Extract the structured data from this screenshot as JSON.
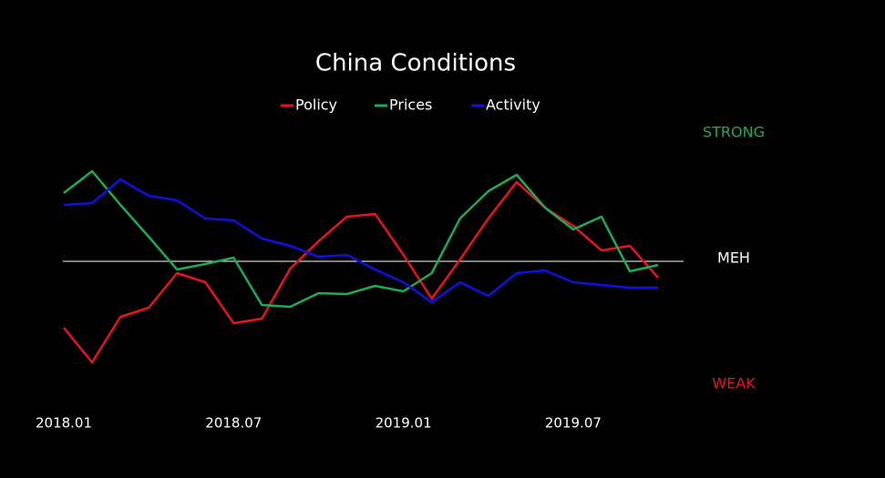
{
  "chart_data": {
    "type": "line",
    "title": "China Conditions",
    "x": [
      "2018-01",
      "2018-02",
      "2018-03",
      "2018-04",
      "2018-05",
      "2018-06",
      "2018-07",
      "2018-08",
      "2018-09",
      "2018-10",
      "2018-11",
      "2018-12",
      "2019-01",
      "2019-02",
      "2019-03",
      "2019-04",
      "2019-05",
      "2019-06",
      "2019-07",
      "2019-08",
      "2019-09",
      "2019-10"
    ],
    "xticks": [
      {
        "value": "2018-01",
        "label": "2018.01"
      },
      {
        "value": "2018-07",
        "label": "2018.07"
      },
      {
        "value": "2019-01",
        "label": "2019.01"
      },
      {
        "value": "2019-07",
        "label": "2019.07"
      }
    ],
    "ylim": [
      -1.3,
      1.5
    ],
    "series": [
      {
        "name": "Policy",
        "color": "#e8141c",
        "values": [
          -0.73,
          -1.11,
          -0.61,
          -0.51,
          -0.13,
          -0.23,
          -0.68,
          -0.63,
          -0.08,
          0.22,
          0.49,
          0.52,
          0.07,
          -0.41,
          0.02,
          0.47,
          0.87,
          0.59,
          0.39,
          0.12,
          0.17,
          -0.18
        ]
      },
      {
        "name": "Prices",
        "color": "#1faa55",
        "values": [
          0.75,
          0.99,
          0.62,
          0.27,
          -0.09,
          -0.03,
          0.04,
          -0.48,
          -0.5,
          -0.35,
          -0.36,
          -0.27,
          -0.33,
          -0.13,
          0.47,
          0.77,
          0.95,
          0.59,
          0.35,
          0.49,
          -0.11,
          -0.04
        ]
      },
      {
        "name": "Activity",
        "color": "#1010e0",
        "values": [
          0.62,
          0.64,
          0.9,
          0.72,
          0.67,
          0.47,
          0.45,
          0.25,
          0.17,
          0.05,
          0.07,
          -0.09,
          -0.23,
          -0.45,
          -0.23,
          -0.38,
          -0.13,
          -0.1,
          -0.23,
          -0.26,
          -0.29,
          -0.29
        ]
      }
    ],
    "reference_line": {
      "value": 0,
      "color": "#ffffff"
    },
    "annotations": [
      {
        "text": "STRONG",
        "color": "#1faa55"
      },
      {
        "text": "MEH",
        "color": "#ffffff"
      },
      {
        "text": "WEAK",
        "color": "#e8141c"
      }
    ],
    "legend": "top"
  }
}
